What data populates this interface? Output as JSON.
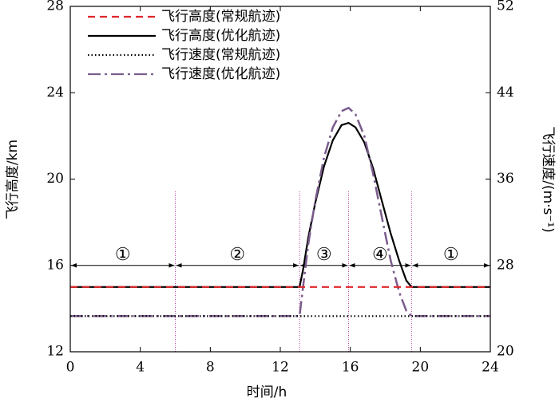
{
  "chart_data": {
    "type": "line",
    "x_label": "时间/h",
    "y_label": "飞行高度/km",
    "y2_label": "飞行速度/(m·s⁻¹)",
    "x": [
      0,
      13.1,
      13.3,
      13.6,
      14,
      14.5,
      15,
      15.5,
      15.9,
      16.3,
      16.8,
      17.3,
      17.8,
      18.3,
      18.8,
      19.2,
      19.5,
      24
    ],
    "series": [
      {
        "name": "飞行高度(常规航迹)",
        "color": "#e0262a",
        "dash": "9,6",
        "values": [
          15,
          15,
          15,
          15,
          15,
          15,
          15,
          15,
          15,
          15,
          15,
          15,
          15,
          15,
          15,
          15,
          15,
          15
        ]
      },
      {
        "name": "飞行高度(优化航迹)",
        "color": "#000000",
        "dash": "none",
        "values": [
          15,
          15,
          15.8,
          17.3,
          18.9,
          20.6,
          21.8,
          22.5,
          22.6,
          22.4,
          21.7,
          20.5,
          19.0,
          17.5,
          16.2,
          15.3,
          15,
          15
        ]
      },
      {
        "name": "飞行速度(常规航迹)",
        "color": "#000000",
        "dash": "1.5,3",
        "axis": "y2",
        "values": [
          23.3,
          23.3,
          23.3,
          23.3,
          23.3,
          23.3,
          23.3,
          23.3,
          23.3,
          23.3,
          23.3,
          23.3,
          23.3,
          23.3,
          23.3,
          23.3,
          23.3,
          23.3
        ]
      },
      {
        "name": "飞行速度(优化航迹)",
        "color": "#7a5c8c",
        "dash": "16,5,3,5",
        "axis": "y2",
        "values": [
          23.3,
          23.3,
          26,
          30,
          34,
          38,
          40.8,
          42.3,
          42.6,
          42.0,
          40,
          36.5,
          32.5,
          28.5,
          25.5,
          23.8,
          23.3,
          23.3
        ]
      }
    ],
    "xlim": [
      0,
      24
    ],
    "xticks": [
      0,
      4,
      8,
      12,
      16,
      20,
      24
    ],
    "ylim": [
      12,
      28
    ],
    "yticks": [
      12,
      16,
      20,
      24,
      28
    ],
    "y2lim": [
      20,
      52
    ],
    "y2ticks": [
      20,
      28,
      36,
      44,
      52
    ],
    "phase_boundaries": [
      6,
      13.1,
      15.9,
      19.5
    ],
    "phases": [
      "①",
      "②",
      "③",
      "④",
      "①"
    ],
    "phase_arrow_level": 16,
    "legend": "upper left"
  }
}
